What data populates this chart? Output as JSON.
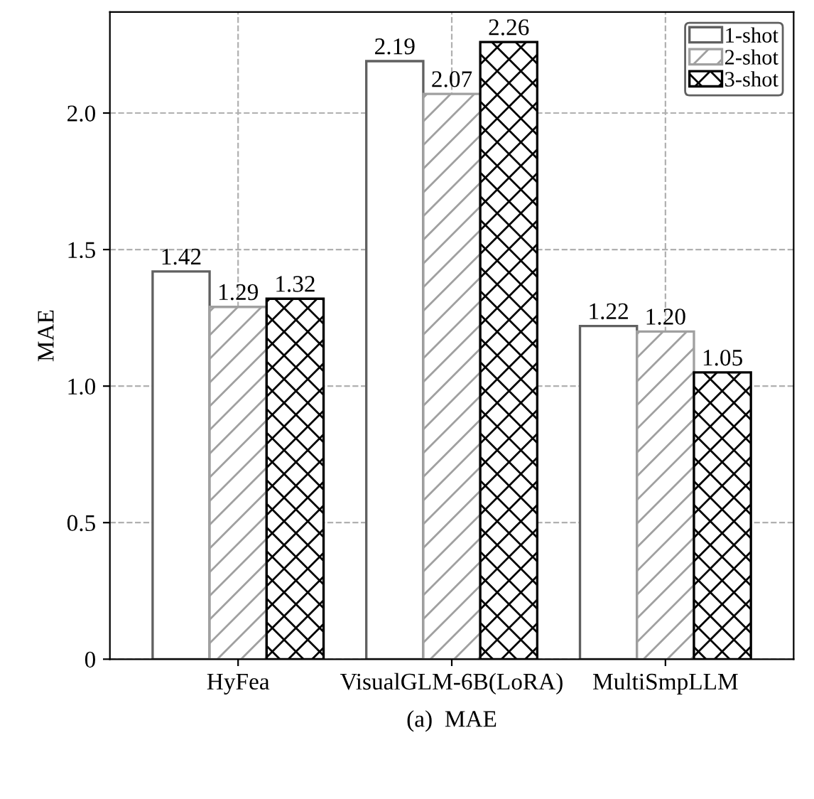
{
  "chart_data": {
    "type": "bar",
    "xlabel": "(a)  MAE",
    "ylabel": "MAE",
    "categories": [
      "HyFea",
      "VisualGLM-6B(LoRA)",
      "MultiSmpLLM"
    ],
    "series": [
      {
        "name": "1-shot",
        "color": "#606060",
        "values": [
          1.42,
          2.19,
          1.22
        ],
        "value_labels": [
          "1.42",
          "2.19",
          "1.22"
        ]
      },
      {
        "name": "2-shot",
        "color": "#a0a0a0",
        "values": [
          1.29,
          2.07,
          1.2
        ],
        "value_labels": [
          "1.29",
          "2.07",
          "1.20"
        ]
      },
      {
        "name": "3-shot",
        "color": "#000000",
        "values": [
          1.32,
          2.26,
          1.05
        ],
        "value_labels": [
          "1.32",
          "2.26",
          "1.05"
        ]
      }
    ],
    "ylim": [
      0,
      2.37
    ],
    "yticks": [
      0,
      {
        "value": 0.5,
        "label": "0.5"
      },
      {
        "value": 1,
        "label": "1.0"
      },
      {
        "value": 1.5,
        "label": "1.5"
      },
      {
        "value": 2,
        "label": "2.0"
      }
    ],
    "grid": true,
    "legend": "top right"
  }
}
